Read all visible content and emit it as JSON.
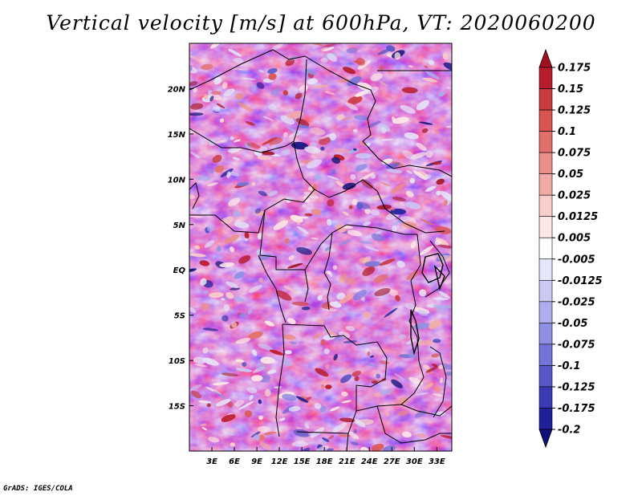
{
  "title": "Vertical velocity [m/s] at 600hPa, VT: 2020060200",
  "credit": "GrADS: IGES/COLA",
  "chart_data": {
    "type": "heatmap",
    "variable": "Vertical velocity",
    "units": "m/s",
    "level": "600hPa",
    "valid_time": "2020060200",
    "xlim": [
      0,
      35
    ],
    "ylim": [
      -20,
      25
    ],
    "x_ticks": [
      3,
      6,
      9,
      12,
      15,
      18,
      21,
      24,
      27,
      30,
      33
    ],
    "x_tick_labels": [
      "3E",
      "6E",
      "9E",
      "12E",
      "15E",
      "18E",
      "21E",
      "24E",
      "27E",
      "30E",
      "33E"
    ],
    "y_ticks": [
      20,
      15,
      10,
      5,
      0,
      -5,
      -10,
      -15
    ],
    "y_tick_labels": [
      "20N",
      "15N",
      "10N",
      "5N",
      "EQ",
      "5S",
      "10S",
      "15S"
    ],
    "colorbar": {
      "levels": [
        0.175,
        0.15,
        0.125,
        0.1,
        0.075,
        0.05,
        0.025,
        0.0125,
        0.005,
        -0.005,
        -0.0125,
        -0.025,
        -0.05,
        -0.075,
        -0.1,
        -0.125,
        -0.175,
        -0.2
      ],
      "labels": [
        "0.175",
        "0.15",
        "0.125",
        "0.1",
        "0.075",
        "0.05",
        "0.025",
        "0.0125",
        "0.005",
        "-0.005",
        "-0.0125",
        "-0.025",
        "-0.05",
        "-0.075",
        "-0.1",
        "-0.125",
        "-0.175",
        "-0.2"
      ],
      "colors": [
        "#a01020",
        "#b81c2c",
        "#c93a3e",
        "#d8544e",
        "#e2706a",
        "#ea8e88",
        "#f2aca8",
        "#f8cdca",
        "#fde8e6",
        "#ffffff",
        "#e6e6fa",
        "#cacaf4",
        "#aeaeec",
        "#9090e2",
        "#7474d8",
        "#5656c8",
        "#3a3ab4",
        "#20209a",
        "#10107a"
      ],
      "extend": "both"
    }
  }
}
